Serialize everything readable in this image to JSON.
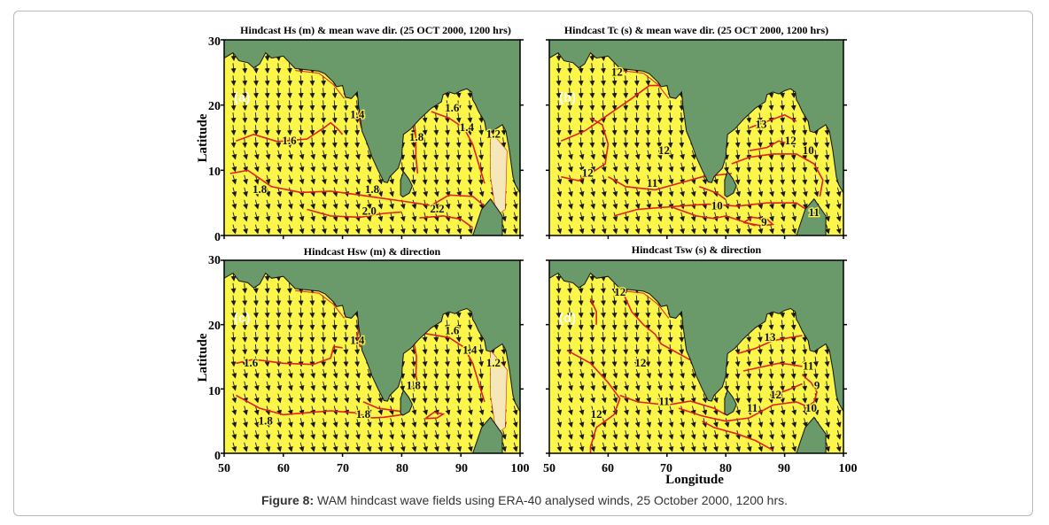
{
  "figure": {
    "caption_label": "Figure 8:",
    "caption_text": " WAM hindcast wave fields using ERA-40 analysed winds, 25 October 2000, 1200 hrs."
  },
  "axes": {
    "xlabel": "Longitude",
    "ylabel": "Latitude",
    "x_ticks": [
      "50",
      "60",
      "70",
      "80",
      "90",
      "100"
    ],
    "x_ticks_right": [
      "50",
      "60",
      "70",
      "80",
      "90",
      "100"
    ],
    "y_ticks": [
      "0",
      "10",
      "20",
      "30"
    ],
    "x_range": [
      50,
      100
    ],
    "y_range": [
      0,
      30
    ]
  },
  "colors": {
    "land": "#6b9a6a",
    "sea": "#fdf64a",
    "contour": "#e0201a",
    "arrow": "#1a1a1a"
  },
  "panels": [
    {
      "id": "a",
      "letter": "(a)",
      "title": "Hindcast Hs (m) & mean wave dir. (25 OCT 2000, 1200 hrs)",
      "labels": [
        {
          "text": "1.6",
          "lon": 61,
          "lat": 14
        },
        {
          "text": "1.4",
          "lon": 72.5,
          "lat": 18
        },
        {
          "text": "1.8",
          "lon": 56,
          "lat": 6.5
        },
        {
          "text": "1.8",
          "lon": 75,
          "lat": 6.5
        },
        {
          "text": "2.0",
          "lon": 74.5,
          "lat": 3.2
        },
        {
          "text": "2.2",
          "lon": 86,
          "lat": 3.5
        },
        {
          "text": "1.8",
          "lon": 82.5,
          "lat": 14.5
        },
        {
          "text": "1.6",
          "lon": 88.5,
          "lat": 19
        },
        {
          "text": "1.4",
          "lon": 91,
          "lat": 16
        },
        {
          "text": "1.2",
          "lon": 95.5,
          "lat": 15
        }
      ]
    },
    {
      "id": "b",
      "letter": "(b)",
      "title": "Hindcast Tc (s) & mean wave dir. (25 OCT 2000, 1200 hrs)",
      "labels": [
        {
          "text": "12",
          "lon": 61.5,
          "lat": 24.5
        },
        {
          "text": "12",
          "lon": 69.5,
          "lat": 12.5
        },
        {
          "text": "12",
          "lon": 56.5,
          "lat": 9
        },
        {
          "text": "11",
          "lon": 67.5,
          "lat": 7.5
        },
        {
          "text": "10",
          "lon": 78.5,
          "lat": 4
        },
        {
          "text": "9",
          "lon": 86.5,
          "lat": 1.5
        },
        {
          "text": "13",
          "lon": 86,
          "lat": 16.5
        },
        {
          "text": "12",
          "lon": 91,
          "lat": 14
        },
        {
          "text": "10",
          "lon": 94,
          "lat": 12.5
        },
        {
          "text": "11",
          "lon": 95,
          "lat": 3
        }
      ]
    },
    {
      "id": "c",
      "letter": "(c)",
      "title": "Hindcast Hsw (m) & direction",
      "labels": [
        {
          "text": "1.6",
          "lon": 54.5,
          "lat": 13.5
        },
        {
          "text": "1.4",
          "lon": 72.5,
          "lat": 17
        },
        {
          "text": "1.8",
          "lon": 57,
          "lat": 4.5
        },
        {
          "text": "1.8",
          "lon": 73.5,
          "lat": 5.5
        },
        {
          "text": "1.8",
          "lon": 82,
          "lat": 10
        },
        {
          "text": "1.6",
          "lon": 88.5,
          "lat": 18.5
        },
        {
          "text": "1.4",
          "lon": 91.5,
          "lat": 15.5
        },
        {
          "text": "1.2",
          "lon": 95.5,
          "lat": 13.5
        }
      ]
    },
    {
      "id": "d",
      "letter": "(d)",
      "title": "Hindcast Tsw (s) & direction",
      "labels": [
        {
          "text": "12",
          "lon": 62,
          "lat": 24.5
        },
        {
          "text": "12",
          "lon": 65.5,
          "lat": 13.5
        },
        {
          "text": "12",
          "lon": 58,
          "lat": 5.5
        },
        {
          "text": "11",
          "lon": 69.5,
          "lat": 7.5
        },
        {
          "text": "11",
          "lon": 84.5,
          "lat": 6.5
        },
        {
          "text": "13",
          "lon": 87.5,
          "lat": 17.5
        },
        {
          "text": "12",
          "lon": 88.5,
          "lat": 8.5
        },
        {
          "text": "11",
          "lon": 94,
          "lat": 13
        },
        {
          "text": "9",
          "lon": 95.5,
          "lat": 10
        },
        {
          "text": "10",
          "lon": 94.5,
          "lat": 6.5
        }
      ]
    }
  ]
}
